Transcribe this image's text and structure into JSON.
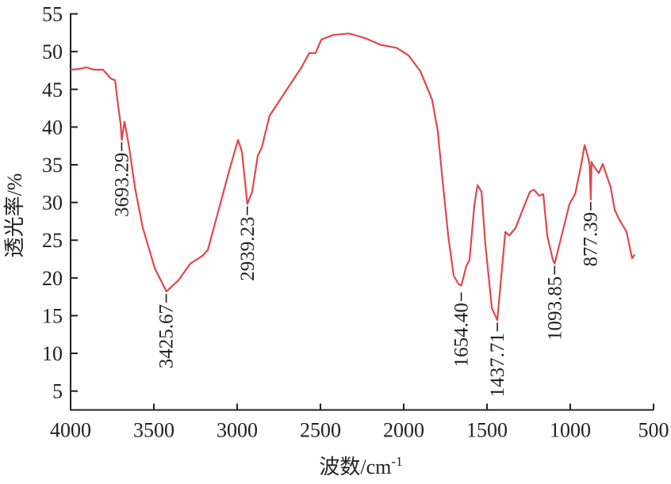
{
  "chart_data": {
    "type": "line",
    "title": "",
    "xlabel": "波数/cm⁻¹",
    "xlabel_main": "波数/cm",
    "xlabel_sup": "-1",
    "ylabel": "透光率/%",
    "xlim": [
      4000,
      500
    ],
    "ylim": [
      2.5,
      56
    ],
    "grid": false,
    "line_color": "#e2474b",
    "xticks": [
      4000,
      3500,
      3000,
      2500,
      2000,
      1500,
      1000,
      500
    ],
    "yticks": [
      5,
      10,
      15,
      20,
      25,
      30,
      35,
      40,
      45,
      50,
      55
    ],
    "series": [
      {
        "name": "spectrum",
        "x": [
          4000,
          3950,
          3905,
          3860,
          3805,
          3757,
          3733,
          3719,
          3700,
          3693,
          3676,
          3648,
          3614,
          3567,
          3495,
          3425,
          3352,
          3281,
          3210,
          3176,
          3114,
          3043,
          2995,
          2971,
          2939,
          2910,
          2876,
          2852,
          2805,
          2710,
          2614,
          2567,
          2529,
          2495,
          2424,
          2329,
          2233,
          2138,
          2043,
          1971,
          1900,
          1829,
          1795,
          1767,
          1733,
          1700,
          1671,
          1654,
          1624,
          1605,
          1576,
          1557,
          1533,
          1510,
          1471,
          1438,
          1414,
          1390,
          1367,
          1329,
          1281,
          1243,
          1219,
          1186,
          1162,
          1138,
          1105,
          1094,
          1052,
          1005,
          971,
          938,
          914,
          895,
          884,
          877,
          872,
          867,
          829,
          805,
          757,
          733,
          710,
          662,
          629,
          614
        ],
        "y": [
          47.6,
          47.7,
          47.9,
          47.6,
          47.6,
          46.4,
          46.2,
          43.6,
          40.5,
          38.3,
          40.7,
          37.3,
          32.0,
          26.7,
          21.3,
          18.2,
          19.7,
          21.9,
          22.9,
          23.7,
          28.8,
          34.6,
          38.3,
          36.7,
          29.8,
          31.4,
          36.2,
          37.3,
          41.5,
          44.7,
          47.9,
          49.8,
          49.8,
          51.6,
          52.2,
          52.4,
          51.8,
          50.9,
          50.5,
          49.5,
          47.4,
          43.6,
          39.4,
          33.0,
          25.6,
          20.3,
          19.2,
          19.0,
          21.6,
          22.4,
          29.6,
          32.3,
          31.4,
          24.5,
          16.0,
          14.4,
          20.3,
          26.1,
          25.6,
          26.6,
          29.3,
          31.4,
          31.7,
          30.9,
          31.1,
          25.6,
          22.4,
          21.9,
          25.6,
          29.8,
          31.1,
          34.6,
          37.6,
          36.2,
          35.0,
          30.4,
          35.4,
          35.1,
          33.9,
          35.1,
          32.0,
          29.0,
          27.9,
          26.1,
          22.6,
          23.1
        ]
      }
    ],
    "annotations": [
      {
        "label": "3693.29",
        "x": 3693.29,
        "y": 38.3
      },
      {
        "label": "3425.67",
        "x": 3425.67,
        "y": 18.2
      },
      {
        "label": "2939.23",
        "x": 2939.23,
        "y": 29.8
      },
      {
        "label": "1654.40",
        "x": 1654.4,
        "y": 18.4
      },
      {
        "label": "1437.71",
        "x": 1437.71,
        "y": 14.4
      },
      {
        "label": "1093.85",
        "x": 1093.85,
        "y": 21.9
      },
      {
        "label": "877.39",
        "x": 877.39,
        "y": 30.4
      }
    ]
  }
}
